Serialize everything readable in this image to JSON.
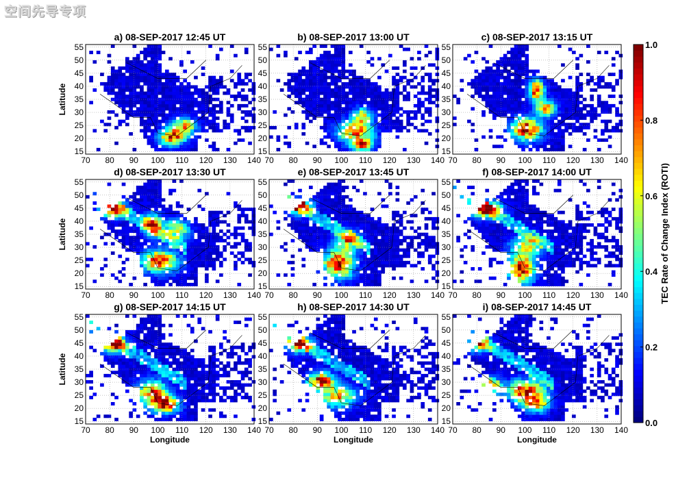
{
  "watermark": "空间先导专项",
  "chart_data": {
    "type": "heatmap",
    "xlabel": "Longitude",
    "ylabel": "Latitude",
    "xlim": [
      70,
      140
    ],
    "ylim": [
      14,
      56
    ],
    "xticks": [
      70,
      80,
      90,
      100,
      110,
      120,
      130,
      140
    ],
    "yticks": [
      15,
      20,
      25,
      30,
      35,
      40,
      45,
      50,
      55
    ],
    "grid": "dotted",
    "colorbar": {
      "label": "TEC Rate of Change Index (ROTI)",
      "range": [
        0.0,
        1.0
      ],
      "ticks": [
        0.0,
        0.2,
        0.4,
        0.6,
        0.8,
        1.0
      ],
      "tick_labels": [
        "0.0",
        "0.2",
        "0.4",
        "0.6",
        "0.8",
        "1.0"
      ],
      "colormap": "jet"
    },
    "panels": [
      {
        "label": "a) 08-SEP-2017 12:45 UT",
        "stage": 0
      },
      {
        "label": "b) 08-SEP-2017 13:00 UT",
        "stage": 1
      },
      {
        "label": "c) 08-SEP-2017 13:15 UT",
        "stage": 2
      },
      {
        "label": "d) 08-SEP-2017 13:30 UT",
        "stage": 3
      },
      {
        "label": "e) 08-SEP-2017 13:45 UT",
        "stage": 4
      },
      {
        "label": "f) 08-SEP-2017 14:00 UT",
        "stage": 5
      },
      {
        "label": "g) 08-SEP-2017 14:15 UT",
        "stage": 6
      },
      {
        "label": "h) 08-SEP-2017 14:30 UT",
        "stage": 7
      },
      {
        "label": "i) 08-SEP-2017 14:45 UT",
        "stage": 8
      }
    ],
    "hotspots": [
      [
        [
          105,
          20,
          0.9,
          5,
          3
        ],
        [
          110,
          24,
          0.7,
          5,
          3
        ]
      ],
      [
        [
          105,
          22,
          0.8,
          7,
          4
        ],
        [
          108,
          28,
          0.6,
          4,
          3
        ],
        [
          108,
          17,
          0.9,
          4,
          2
        ]
      ],
      [
        [
          100,
          23,
          1.0,
          6,
          4
        ],
        [
          104,
          38,
          0.9,
          3,
          4
        ],
        [
          108,
          31,
          0.7,
          4,
          3
        ]
      ],
      [
        [
          81,
          44,
          0.95,
          5,
          3
        ],
        [
          100,
          24,
          0.95,
          7,
          4
        ],
        [
          97,
          38,
          0.8,
          4,
          4
        ],
        [
          107,
          36,
          0.6,
          5,
          4
        ]
      ],
      [
        [
          82,
          45,
          0.8,
          5,
          3
        ],
        [
          98,
          23,
          1.0,
          6,
          5
        ],
        [
          102,
          32,
          0.6,
          5,
          4
        ]
      ],
      [
        [
          83,
          44,
          1.0,
          6,
          3
        ],
        [
          98,
          21,
          1.0,
          5,
          5
        ],
        [
          100,
          30,
          0.6,
          6,
          4
        ]
      ],
      [
        [
          81,
          44,
          0.95,
          5,
          3
        ],
        [
          97,
          25,
          0.8,
          6,
          5
        ],
        [
          103,
          21,
          0.9,
          5,
          3
        ]
      ],
      [
        [
          82,
          44,
          0.9,
          5,
          3
        ],
        [
          91,
          30,
          1.0,
          5,
          3
        ],
        [
          98,
          24,
          0.7,
          7,
          4
        ]
      ],
      [
        [
          85,
          28,
          0.9,
          4,
          3
        ],
        [
          100,
          26,
          1.0,
          7,
          4
        ],
        [
          104,
          21,
          0.7,
          5,
          3
        ],
        [
          80,
          44,
          0.6,
          5,
          3
        ]
      ]
    ]
  }
}
